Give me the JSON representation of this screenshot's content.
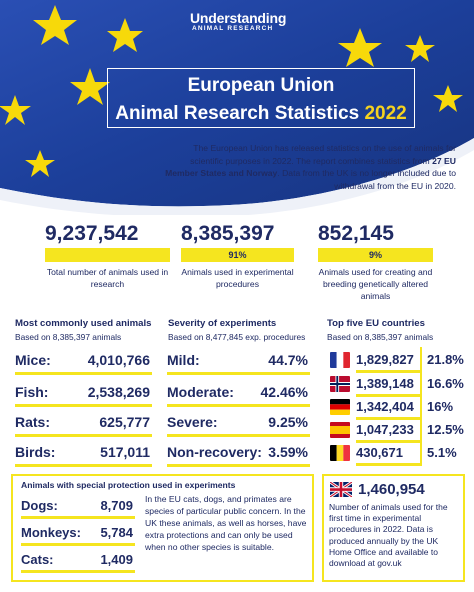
{
  "logo": {
    "line1": "Understanding",
    "line2": "ANIMAL RESEARCH"
  },
  "title": {
    "line1": "European Union",
    "line2": "Animal Research Statistics",
    "year": "2022"
  },
  "intro": {
    "part1": "The European Union has released statistics on the use of animals for scientific purposes in 2022. The report combines statistics from ",
    "bold": "27 EU Member States and Norway",
    "part2": ". Data from the UK is no longer included due to withdrawal from the EU in 2020."
  },
  "headline_stats": [
    {
      "value": "9,237,542",
      "percent": "",
      "label": "Total number of animals used in research"
    },
    {
      "value": "8,385,397",
      "percent": "91%",
      "label": "Animals used in experimental procedures"
    },
    {
      "value": "852,145",
      "percent": "9%",
      "label": "Animals used for creating and breeding genetically altered animals"
    }
  ],
  "species": {
    "title": "Most commonly used animals",
    "subtitle": "Based on 8,385,397 animals",
    "rows": [
      {
        "name": "Mice:",
        "value": "4,010,766"
      },
      {
        "name": "Fish:",
        "value": "2,538,269"
      },
      {
        "name": "Rats:",
        "value": "625,777"
      },
      {
        "name": "Birds:",
        "value": "517,011"
      }
    ]
  },
  "severity": {
    "title": "Severity of experiments",
    "subtitle": "Based on 8,477,845 exp. procedures",
    "rows": [
      {
        "name": "Mild:",
        "value": "44.7%"
      },
      {
        "name": "Moderate:",
        "value": "42.46%"
      },
      {
        "name": "Severe:",
        "value": "9.25%"
      },
      {
        "name": "Non-recovery:",
        "value": "3.59%"
      }
    ]
  },
  "countries": {
    "title": "Top five EU countries",
    "subtitle": "Based on 8,385,397 animals",
    "rows": [
      {
        "flag": "france-flag-icon",
        "value": "1,829,827",
        "percent": "21.8%"
      },
      {
        "flag": "norway-flag-icon",
        "value": "1,389,148",
        "percent": "16.6%"
      },
      {
        "flag": "germany-flag-icon",
        "value": "1,342,404",
        "percent": "16%"
      },
      {
        "flag": "spain-flag-icon",
        "value": "1,047,233",
        "percent": "12.5%"
      },
      {
        "flag": "belgium-flag-icon",
        "value": "430,671",
        "percent": "5.1%"
      }
    ]
  },
  "protection": {
    "title": "Animals with special protection used in experiments",
    "rows": [
      {
        "name": "Dogs:",
        "value": "8,709"
      },
      {
        "name": "Monkeys:",
        "value": "5,784"
      },
      {
        "name": "Cats:",
        "value": "1,409"
      }
    ],
    "note": "In the EU cats, dogs, and primates are species of particular public concern. In the UK these animals, as well as horses, have extra protections and can only be used when no other species is suitable."
  },
  "uk": {
    "flag": "uk-flag-icon",
    "value": "1,460,954",
    "text": "Number of animals used for the first time in experimental procedures in 2022. Data is produced annually by the UK Home Office and available to download at gov.uk"
  },
  "colors": {
    "navy": "#1f2a63",
    "yellow": "#f5e51f",
    "eu_blue": "#1c3f9a",
    "star": "#f7d90a"
  }
}
